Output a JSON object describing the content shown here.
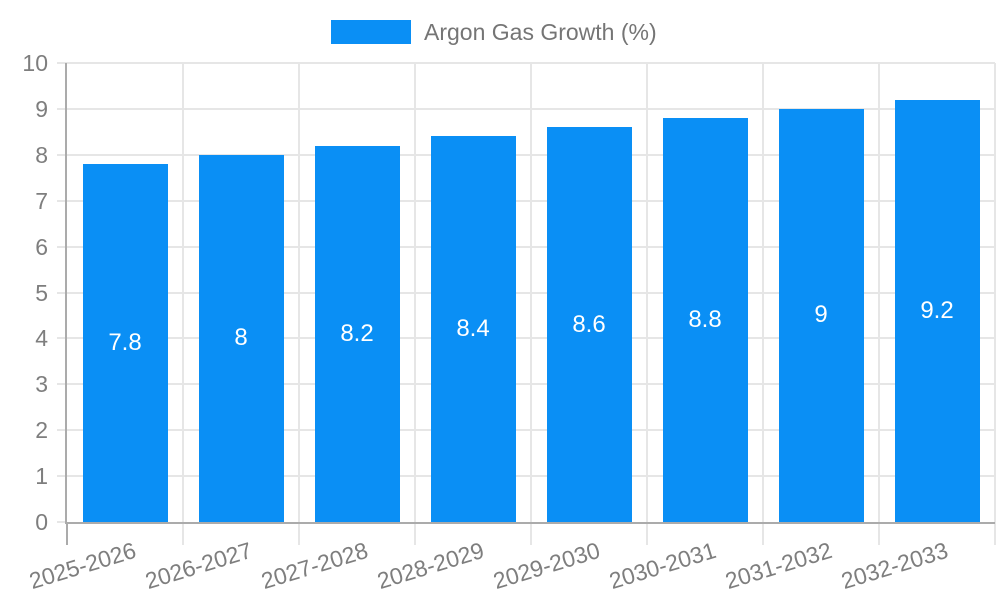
{
  "legend": {
    "label": "Argon Gas Growth (%)"
  },
  "chart_data": {
    "type": "bar",
    "title": "Argon Gas Growth (%)",
    "categories": [
      "2025-2026",
      "2026-2027",
      "2027-2028",
      "2028-2029",
      "2029-2030",
      "2030-2031",
      "2031-2032",
      "2032-2033"
    ],
    "values": [
      7.8,
      8,
      8.2,
      8.4,
      8.6,
      8.8,
      9,
      9.2
    ],
    "value_labels": [
      "7.8",
      "8",
      "8.2",
      "8.4",
      "8.6",
      "8.8",
      "9",
      "9.2"
    ],
    "xlabel": "",
    "ylabel": "",
    "ylim": [
      0,
      10
    ],
    "y_tick_labels": [
      "0",
      "1",
      "2",
      "3",
      "4",
      "5",
      "6",
      "7",
      "8",
      "9",
      "10"
    ],
    "grid": true,
    "legend_position": "top-center",
    "x_tick_rotation_deg": -17,
    "colors": {
      "bar": "#0a8ff5",
      "grid": "#e6e6e6",
      "axis": "#ababab",
      "tick_label": "#7e7e7e",
      "legend_text": "#757575",
      "value_label": "#ffffff",
      "background": "#ffffff"
    }
  }
}
